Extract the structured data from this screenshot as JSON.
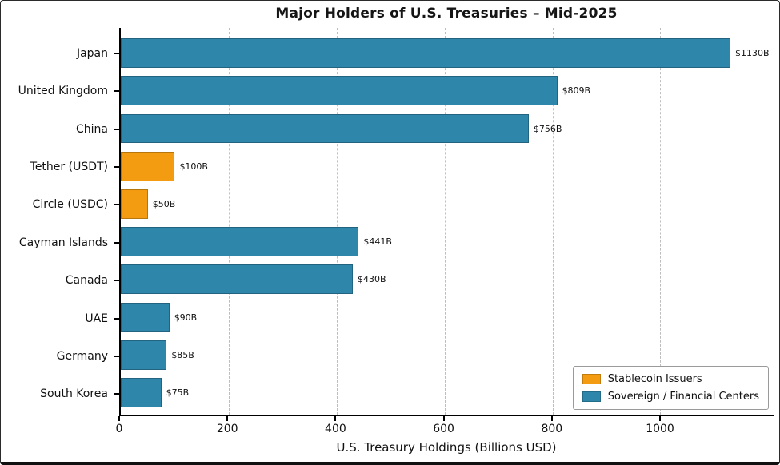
{
  "chart_data": {
    "type": "bar",
    "orientation": "horizontal",
    "title": "Major Holders of U.S. Treasuries – Mid-2025",
    "xlabel": "U.S. Treasury Holdings (Billions USD)",
    "categories": [
      "Japan",
      "United Kingdom",
      "China",
      "Tether (USDT)",
      "Circle (USDC)",
      "Cayman Islands",
      "Canada",
      "UAE",
      "Germany",
      "South Korea"
    ],
    "values": [
      1130,
      809,
      756,
      100,
      50,
      441,
      430,
      90,
      85,
      75
    ],
    "value_labels": [
      "$1130B",
      "$809B",
      "$756B",
      "$100B",
      "$50B",
      "$441B",
      "$430B",
      "$90B",
      "$85B",
      "$75B"
    ],
    "bar_series": [
      "sovereign",
      "sovereign",
      "sovereign",
      "stablecoin",
      "stablecoin",
      "sovereign",
      "sovereign",
      "sovereign",
      "sovereign",
      "sovereign"
    ],
    "colors": {
      "stablecoin": "#f39c12",
      "sovereign": "#2e86ab"
    },
    "xlim": [
      0,
      1210
    ],
    "xtick_values": [
      0,
      200,
      400,
      600,
      800,
      1000
    ],
    "xtick_labels": [
      "0",
      "200",
      "400",
      "600",
      "800",
      "1000"
    ],
    "grid": "vertical-dashed",
    "legend": {
      "position": "lower-right",
      "entries": [
        {
          "label": "Stablecoin Issuers",
          "key": "stablecoin",
          "color": "#f39c12"
        },
        {
          "label": "Sovereign / Financial Centers",
          "key": "sovereign",
          "color": "#2e86ab"
        }
      ]
    }
  }
}
